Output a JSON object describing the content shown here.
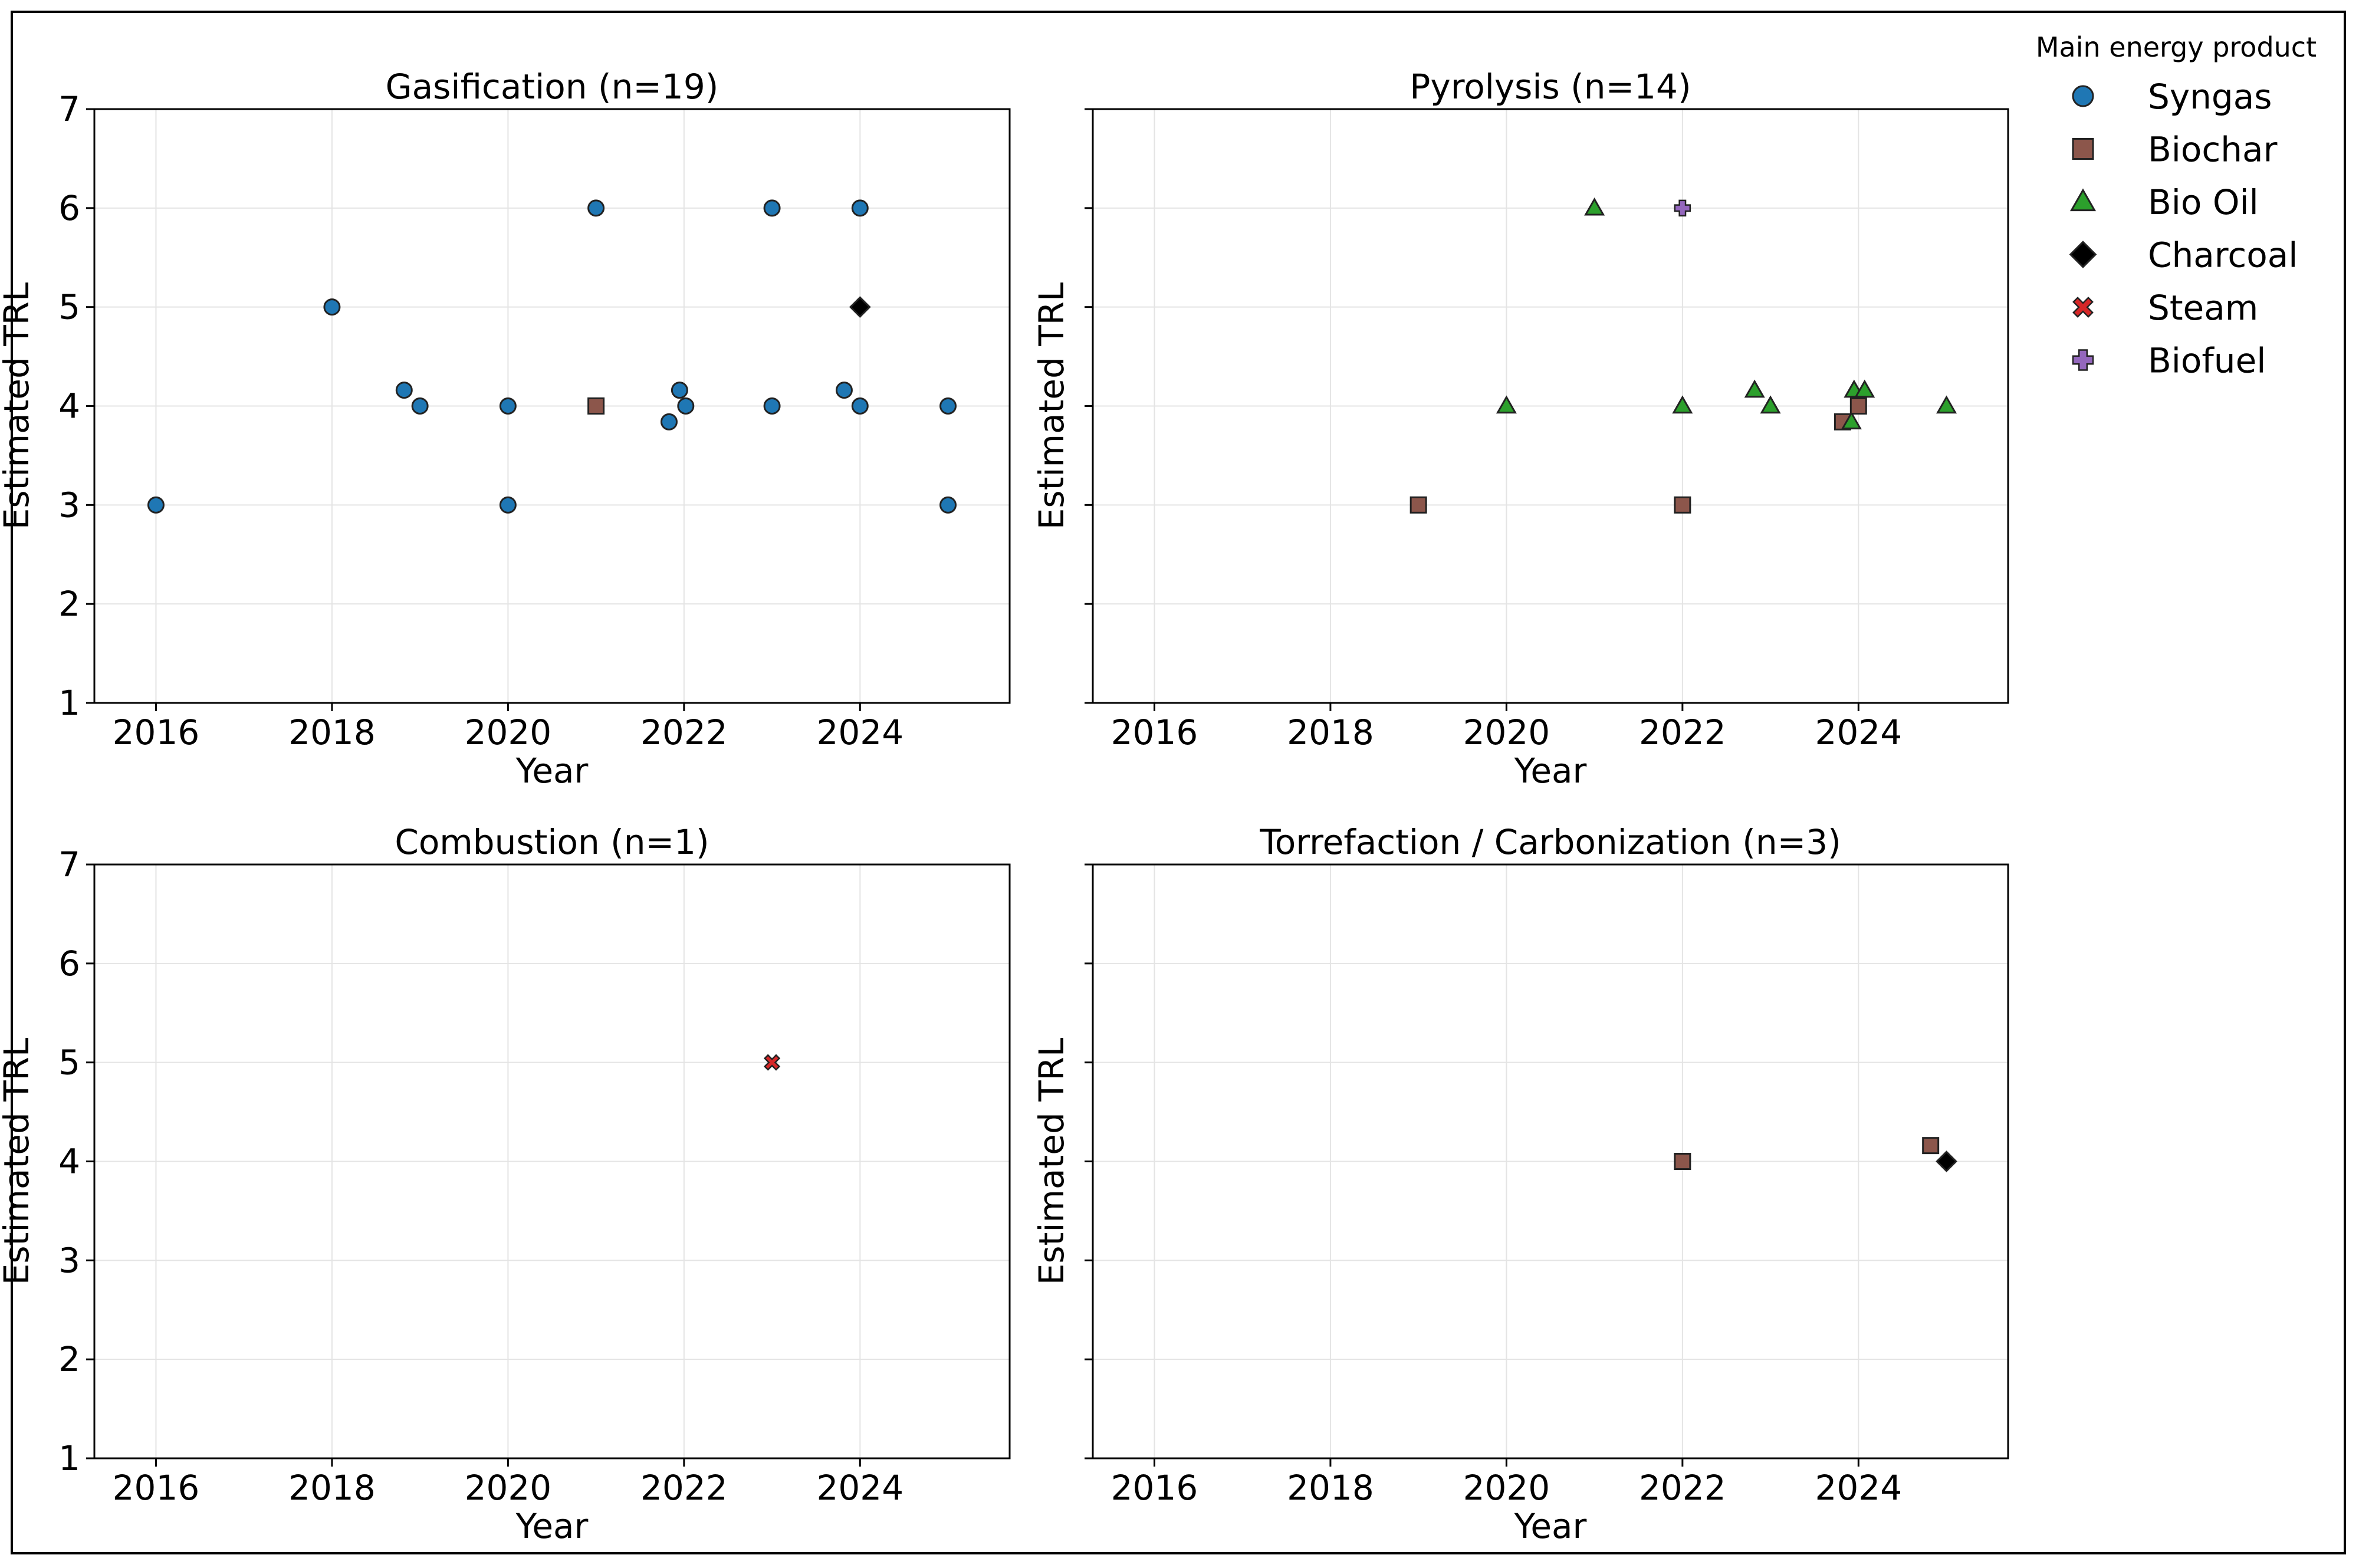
{
  "figure": {
    "legend_title": "Main energy product",
    "y_label": "Estimated TRL",
    "x_label": "Year"
  },
  "chart_data": [
    {
      "type": "scatter",
      "title": "Gasification (n=19)",
      "xlabel": "Year",
      "ylabel": "Estimated TRL",
      "xlim": [
        2015.3,
        2025.7
      ],
      "ylim": [
        1,
        7
      ],
      "xticks": [
        "2016",
        "2018",
        "2020",
        "2022",
        "2024"
      ],
      "yticks": [
        "1",
        "2",
        "3",
        "4",
        "5",
        "6",
        "7"
      ],
      "grid": true,
      "points": [
        {
          "x": 2016,
          "y": 3,
          "series": "Syngas"
        },
        {
          "x": 2018,
          "y": 5,
          "series": "Syngas"
        },
        {
          "x": 2018.82,
          "y": 4.16,
          "series": "Syngas"
        },
        {
          "x": 2019,
          "y": 4,
          "series": "Syngas"
        },
        {
          "x": 2020,
          "y": 4,
          "series": "Syngas"
        },
        {
          "x": 2020,
          "y": 3,
          "series": "Syngas"
        },
        {
          "x": 2021,
          "y": 6,
          "series": "Syngas"
        },
        {
          "x": 2021,
          "y": 4,
          "series": "Biochar"
        },
        {
          "x": 2021.83,
          "y": 3.84,
          "series": "Syngas"
        },
        {
          "x": 2021.95,
          "y": 4.16,
          "series": "Syngas"
        },
        {
          "x": 2022.02,
          "y": 4,
          "series": "Syngas"
        },
        {
          "x": 2023,
          "y": 6,
          "series": "Syngas"
        },
        {
          "x": 2023,
          "y": 4,
          "series": "Syngas"
        },
        {
          "x": 2023.82,
          "y": 4.16,
          "series": "Syngas"
        },
        {
          "x": 2024,
          "y": 6,
          "series": "Syngas"
        },
        {
          "x": 2024,
          "y": 5,
          "series": "Charcoal"
        },
        {
          "x": 2024,
          "y": 4,
          "series": "Syngas"
        },
        {
          "x": 2025,
          "y": 4,
          "series": "Syngas"
        },
        {
          "x": 2025,
          "y": 3,
          "series": "Syngas"
        }
      ]
    },
    {
      "type": "scatter",
      "title": "Pyrolysis (n=14)",
      "xlabel": "Year",
      "ylabel": "Estimated TRL",
      "xlim": [
        2015.3,
        2025.7
      ],
      "ylim": [
        1,
        7
      ],
      "xticks": [
        "2016",
        "2018",
        "2020",
        "2022",
        "2024"
      ],
      "yticks": [],
      "grid": true,
      "points": [
        {
          "x": 2019,
          "y": 3,
          "series": "Biochar"
        },
        {
          "x": 2020,
          "y": 4,
          "series": "Bio Oil"
        },
        {
          "x": 2021,
          "y": 6,
          "series": "Bio Oil"
        },
        {
          "x": 2022,
          "y": 6,
          "series": "Biofuel"
        },
        {
          "x": 2022,
          "y": 4,
          "series": "Bio Oil"
        },
        {
          "x": 2022,
          "y": 3,
          "series": "Biochar"
        },
        {
          "x": 2022.82,
          "y": 4.16,
          "series": "Bio Oil"
        },
        {
          "x": 2023,
          "y": 4,
          "series": "Bio Oil"
        },
        {
          "x": 2023.82,
          "y": 3.84,
          "series": "Biochar"
        },
        {
          "x": 2023.92,
          "y": 3.84,
          "series": "Bio Oil"
        },
        {
          "x": 2023.95,
          "y": 4.16,
          "series": "Bio Oil"
        },
        {
          "x": 2024,
          "y": 4,
          "series": "Biochar"
        },
        {
          "x": 2024.07,
          "y": 4.16,
          "series": "Bio Oil"
        },
        {
          "x": 2025,
          "y": 4,
          "series": "Bio Oil"
        }
      ]
    },
    {
      "type": "scatter",
      "title": "Combustion (n=1)",
      "xlabel": "Year",
      "ylabel": "Estimated TRL",
      "xlim": [
        2015.3,
        2025.7
      ],
      "ylim": [
        1,
        7
      ],
      "xticks": [
        "2016",
        "2018",
        "2020",
        "2022",
        "2024"
      ],
      "yticks": [
        "1",
        "2",
        "3",
        "4",
        "5",
        "6",
        "7"
      ],
      "grid": true,
      "points": [
        {
          "x": 2023,
          "y": 5,
          "series": "Steam"
        }
      ]
    },
    {
      "type": "scatter",
      "title": "Torrefaction / Carbonization (n=3)",
      "xlabel": "Year",
      "ylabel": "Estimated TRL",
      "xlim": [
        2015.3,
        2025.7
      ],
      "ylim": [
        1,
        7
      ],
      "xticks": [
        "2016",
        "2018",
        "2020",
        "2022",
        "2024"
      ],
      "yticks": [],
      "grid": true,
      "points": [
        {
          "x": 2022,
          "y": 4,
          "series": "Biochar"
        },
        {
          "x": 2024.82,
          "y": 4.16,
          "series": "Biochar"
        },
        {
          "x": 2025,
          "y": 4,
          "series": "Charcoal"
        }
      ]
    }
  ],
  "legend": {
    "placement": "top-right, outside plots",
    "entries": [
      {
        "label": "Syngas",
        "marker": "circle",
        "color": "#1f77b4"
      },
      {
        "label": "Biochar",
        "marker": "square",
        "color": "#8c564b"
      },
      {
        "label": "Bio Oil",
        "marker": "triangle",
        "color": "#2ca02c"
      },
      {
        "label": "Charcoal",
        "marker": "diamond",
        "color": "#000000"
      },
      {
        "label": "Steam",
        "marker": "x",
        "color": "#d62728"
      },
      {
        "label": "Biofuel",
        "marker": "plus",
        "color": "#9467bd"
      }
    ]
  }
}
